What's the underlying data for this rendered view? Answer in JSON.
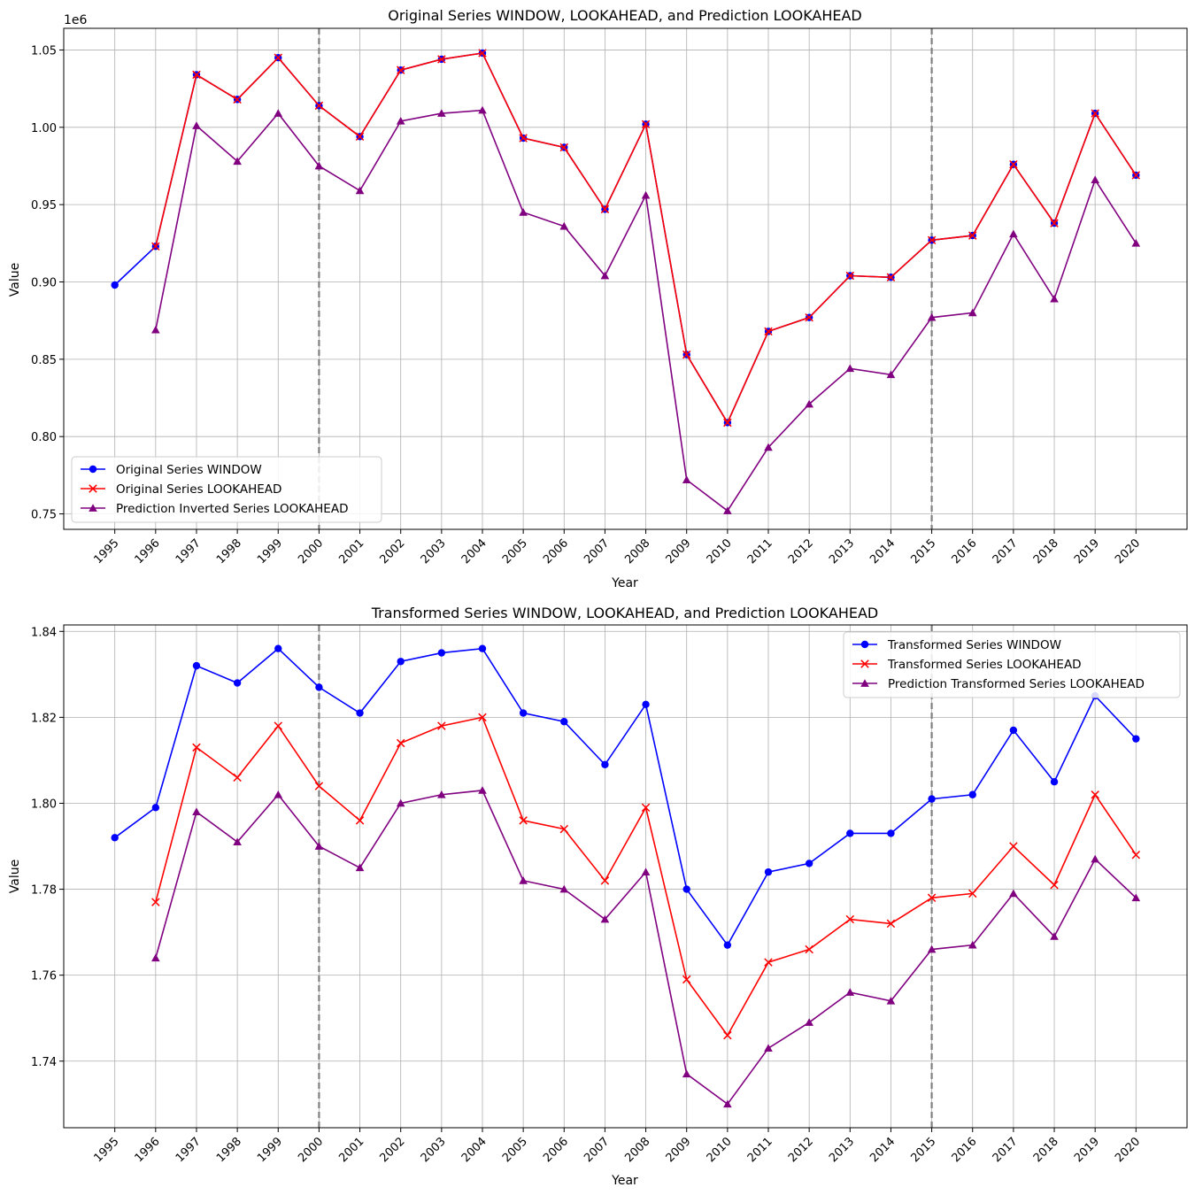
{
  "chart_data": [
    {
      "type": "line",
      "title": "Original Series WINDOW, LOOKAHEAD, and Prediction LOOKAHEAD",
      "xlabel": "Year",
      "ylabel": "Value",
      "y_offset_label": "1e6",
      "x_ticks": [
        "1995",
        "1996",
        "1997",
        "1998",
        "1999",
        "2000",
        "2001",
        "2002",
        "2003",
        "2004",
        "2005",
        "2006",
        "2007",
        "2008",
        "2009",
        "2010",
        "2011",
        "2012",
        "2013",
        "2014",
        "2015",
        "2016",
        "2017",
        "2018",
        "2019",
        "2020"
      ],
      "y_ticks": [
        "0.75",
        "0.80",
        "0.85",
        "0.90",
        "0.95",
        "1.00",
        "1.05"
      ],
      "ylim": [
        0.74,
        1.064
      ],
      "xlim": [
        1993.75,
        2021.25
      ],
      "grid": true,
      "legend_position": "lower-left",
      "vlines": [
        2000,
        2015
      ],
      "series": [
        {
          "name": "Original Series WINDOW",
          "color": "#0000ff",
          "marker": "circle",
          "x": [
            1995,
            1996,
            1997,
            1998,
            1999,
            2000,
            2001,
            2002,
            2003,
            2004,
            2005,
            2006,
            2007,
            2008,
            2009,
            2010,
            2011,
            2012,
            2013,
            2014,
            2015,
            2016,
            2017,
            2018,
            2019,
            2020
          ],
          "values": [
            0.898,
            0.923,
            1.034,
            1.018,
            1.045,
            1.014,
            0.994,
            1.037,
            1.044,
            1.048,
            0.993,
            0.987,
            0.947,
            1.002,
            0.853,
            0.809,
            0.868,
            0.877,
            0.904,
            0.903,
            0.927,
            0.93,
            0.976,
            0.938,
            1.009,
            0.969
          ]
        },
        {
          "name": "Original Series LOOKAHEAD",
          "color": "#ff0000",
          "marker": "x",
          "x": [
            1996,
            1997,
            1998,
            1999,
            2000,
            2001,
            2002,
            2003,
            2004,
            2005,
            2006,
            2007,
            2008,
            2009,
            2010,
            2011,
            2012,
            2013,
            2014,
            2015,
            2016,
            2017,
            2018,
            2019,
            2020
          ],
          "values": [
            0.923,
            1.034,
            1.018,
            1.045,
            1.014,
            0.994,
            1.037,
            1.044,
            1.048,
            0.993,
            0.987,
            0.947,
            1.002,
            0.853,
            0.809,
            0.868,
            0.877,
            0.904,
            0.903,
            0.927,
            0.93,
            0.976,
            0.938,
            1.009,
            0.969
          ]
        },
        {
          "name": "Prediction Inverted Series LOOKAHEAD",
          "color": "#800080",
          "marker": "triangle",
          "x": [
            1996,
            1997,
            1998,
            1999,
            2000,
            2001,
            2002,
            2003,
            2004,
            2005,
            2006,
            2007,
            2008,
            2009,
            2010,
            2011,
            2012,
            2013,
            2014,
            2015,
            2016,
            2017,
            2018,
            2019,
            2020
          ],
          "values": [
            0.869,
            1.001,
            0.978,
            1.009,
            0.975,
            0.959,
            1.004,
            1.009,
            1.011,
            0.945,
            0.936,
            0.904,
            0.956,
            0.772,
            0.752,
            0.793,
            0.821,
            0.844,
            0.84,
            0.877,
            0.88,
            0.931,
            0.889,
            0.966,
            0.925
          ]
        }
      ]
    },
    {
      "type": "line",
      "title": "Transformed Series WINDOW, LOOKAHEAD, and Prediction LOOKAHEAD",
      "xlabel": "Year",
      "ylabel": "Value",
      "y_offset_label": "",
      "x_ticks": [
        "1995",
        "1996",
        "1997",
        "1998",
        "1999",
        "2000",
        "2001",
        "2002",
        "2003",
        "2004",
        "2005",
        "2006",
        "2007",
        "2008",
        "2009",
        "2010",
        "2011",
        "2012",
        "2013",
        "2014",
        "2015",
        "2016",
        "2017",
        "2018",
        "2019",
        "2020"
      ],
      "y_ticks": [
        "1.74",
        "1.76",
        "1.78",
        "1.80",
        "1.82",
        "1.84"
      ],
      "ylim": [
        1.7245,
        1.8415
      ],
      "xlim": [
        1993.75,
        2021.25
      ],
      "grid": true,
      "legend_position": "upper-right",
      "vlines": [
        2000,
        2015
      ],
      "series": [
        {
          "name": "Transformed Series WINDOW",
          "color": "#0000ff",
          "marker": "circle",
          "x": [
            1995,
            1996,
            1997,
            1998,
            1999,
            2000,
            2001,
            2002,
            2003,
            2004,
            2005,
            2006,
            2007,
            2008,
            2009,
            2010,
            2011,
            2012,
            2013,
            2014,
            2015,
            2016,
            2017,
            2018,
            2019,
            2020
          ],
          "values": [
            1.792,
            1.799,
            1.832,
            1.828,
            1.836,
            1.827,
            1.821,
            1.833,
            1.835,
            1.836,
            1.821,
            1.819,
            1.809,
            1.823,
            1.78,
            1.767,
            1.784,
            1.786,
            1.793,
            1.793,
            1.801,
            1.802,
            1.817,
            1.805,
            1.825,
            1.815
          ]
        },
        {
          "name": "Transformed Series LOOKAHEAD",
          "color": "#ff0000",
          "marker": "x",
          "x": [
            1996,
            1997,
            1998,
            1999,
            2000,
            2001,
            2002,
            2003,
            2004,
            2005,
            2006,
            2007,
            2008,
            2009,
            2010,
            2011,
            2012,
            2013,
            2014,
            2015,
            2016,
            2017,
            2018,
            2019,
            2020
          ],
          "values": [
            1.777,
            1.813,
            1.806,
            1.818,
            1.804,
            1.796,
            1.814,
            1.818,
            1.82,
            1.796,
            1.794,
            1.782,
            1.799,
            1.759,
            1.746,
            1.763,
            1.766,
            1.773,
            1.772,
            1.778,
            1.779,
            1.79,
            1.781,
            1.802,
            1.788
          ]
        },
        {
          "name": "Prediction Transformed Series LOOKAHEAD",
          "color": "#800080",
          "marker": "triangle",
          "x": [
            1996,
            1997,
            1998,
            1999,
            2000,
            2001,
            2002,
            2003,
            2004,
            2005,
            2006,
            2007,
            2008,
            2009,
            2010,
            2011,
            2012,
            2013,
            2014,
            2015,
            2016,
            2017,
            2018,
            2019,
            2020
          ],
          "values": [
            1.764,
            1.798,
            1.791,
            1.802,
            1.79,
            1.785,
            1.8,
            1.802,
            1.803,
            1.782,
            1.78,
            1.773,
            1.784,
            1.737,
            1.73,
            1.743,
            1.749,
            1.756,
            1.754,
            1.766,
            1.767,
            1.779,
            1.769,
            1.787,
            1.778
          ]
        }
      ]
    }
  ]
}
